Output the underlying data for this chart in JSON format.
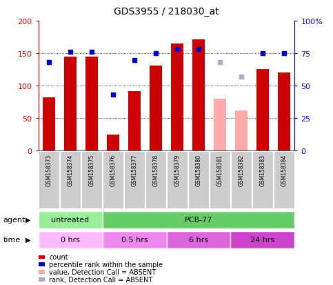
{
  "title": "GDS3955 / 218030_at",
  "samples": [
    "GSM158373",
    "GSM158374",
    "GSM158375",
    "GSM158376",
    "GSM158377",
    "GSM158378",
    "GSM158379",
    "GSM158380",
    "GSM158381",
    "GSM158382",
    "GSM158383",
    "GSM158384"
  ],
  "counts": [
    82,
    145,
    145,
    25,
    92,
    131,
    165,
    171,
    null,
    null,
    126,
    120
  ],
  "absent_counts": [
    null,
    null,
    null,
    null,
    null,
    null,
    null,
    null,
    80,
    62,
    null,
    null
  ],
  "percentile_ranks": [
    68,
    76,
    76,
    43,
    70,
    75,
    78,
    78,
    null,
    null,
    75,
    75
  ],
  "absent_ranks": [
    null,
    null,
    null,
    null,
    null,
    null,
    null,
    null,
    68,
    57,
    null,
    null
  ],
  "ylim_left": [
    0,
    200
  ],
  "ylim_right": [
    0,
    100
  ],
  "yticks_left": [
    0,
    50,
    100,
    150,
    200
  ],
  "yticks_right": [
    0,
    25,
    50,
    75,
    100
  ],
  "ytick_labels_right": [
    "0",
    "25",
    "50",
    "75",
    "100%"
  ],
  "bar_color": "#cc0000",
  "absent_bar_color": "#ffaaaa",
  "scatter_color": "#0000cc",
  "absent_scatter_color": "#aaaacc",
  "agent_groups": [
    {
      "label": "untreated",
      "start": 0,
      "end": 3,
      "color": "#99ee99"
    },
    {
      "label": "PCB-77",
      "start": 3,
      "end": 12,
      "color": "#66cc66"
    }
  ],
  "time_groups": [
    {
      "label": "0 hrs",
      "start": 0,
      "end": 3,
      "color": "#ffbbff"
    },
    {
      "label": "0.5 hrs",
      "start": 3,
      "end": 6,
      "color": "#ee88ee"
    },
    {
      "label": "6 hrs",
      "start": 6,
      "end": 9,
      "color": "#dd66dd"
    },
    {
      "label": "24 hrs",
      "start": 9,
      "end": 12,
      "color": "#cc44cc"
    }
  ],
  "legend_items": [
    {
      "label": "count",
      "color": "#cc0000"
    },
    {
      "label": "percentile rank within the sample",
      "color": "#0000cc"
    },
    {
      "label": "value, Detection Call = ABSENT",
      "color": "#ffaaaa"
    },
    {
      "label": "rank, Detection Call = ABSENT",
      "color": "#aaaacc"
    }
  ],
  "axis_color_left": "#cc0000",
  "axis_color_right": "#0000cc",
  "sample_box_color": "#cccccc",
  "agent_label": "agent",
  "time_label": "time"
}
